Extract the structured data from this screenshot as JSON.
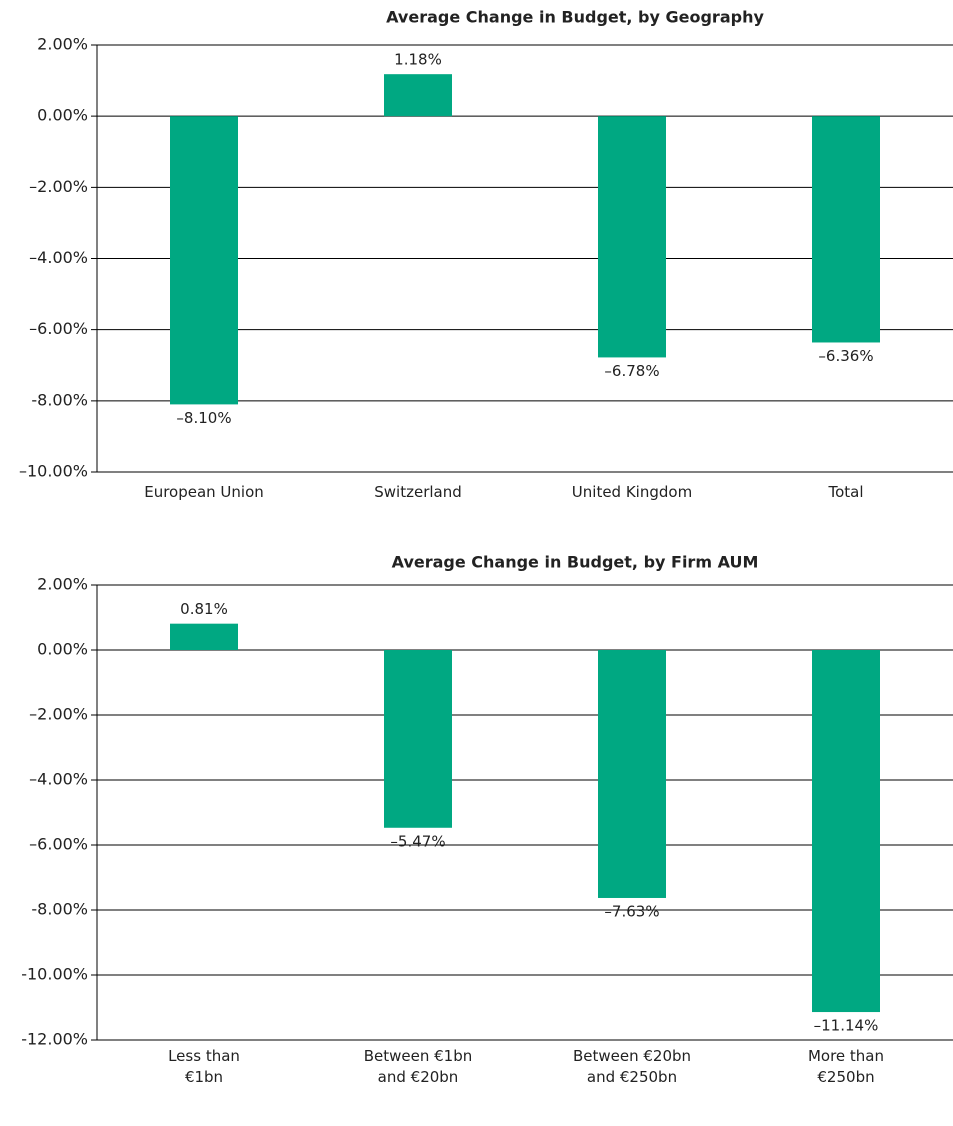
{
  "chart_data": [
    {
      "type": "bar",
      "title": "Average Change in Budget, by Geography",
      "categories": [
        "European Union",
        "Switzerland",
        "United Kingdom",
        "Total"
      ],
      "values": [
        -8.1,
        1.18,
        -6.78,
        -6.36
      ],
      "value_labels": [
        "–8.10%",
        "1.18%",
        "–6.78%",
        "–6.36%"
      ],
      "color": "#00a882",
      "ylim": [
        -10,
        2
      ],
      "yticks": [
        {
          "value": -10,
          "label": "–10.00%"
        },
        {
          "value": -8,
          "label": "-8.00%"
        },
        {
          "value": -6,
          "label": "–6.00%"
        },
        {
          "value": -4,
          "label": "–4.00%"
        },
        {
          "value": -2,
          "label": "–2.00%"
        },
        {
          "value": 0,
          "label": "0.00%"
        },
        {
          "value": 2,
          "label": "2.00%"
        }
      ],
      "grid": true
    },
    {
      "type": "bar",
      "title": "Average Change in Budget, by Firm AUM",
      "categories": [
        "Less than\n€1bn",
        "Between €1bn\nand €20bn",
        "Between €20bn\nand €250bn",
        "More than\n€250bn"
      ],
      "values": [
        0.81,
        -5.47,
        -7.63,
        -11.14
      ],
      "value_labels": [
        "0.81%",
        "–5.47%",
        "–7.63%",
        "–11.14%"
      ],
      "color": "#00a882",
      "ylim": [
        -12,
        2
      ],
      "yticks": [
        {
          "value": -12,
          "label": "-12.00%"
        },
        {
          "value": -10,
          "label": "-10.00%"
        },
        {
          "value": -8,
          "label": "-8.00%"
        },
        {
          "value": -6,
          "label": "–6.00%"
        },
        {
          "value": -4,
          "label": "–4.00%"
        },
        {
          "value": -2,
          "label": "–2.00%"
        },
        {
          "value": 0,
          "label": "0.00%"
        },
        {
          "value": 2,
          "label": "2.00%"
        }
      ],
      "grid": true
    }
  ]
}
